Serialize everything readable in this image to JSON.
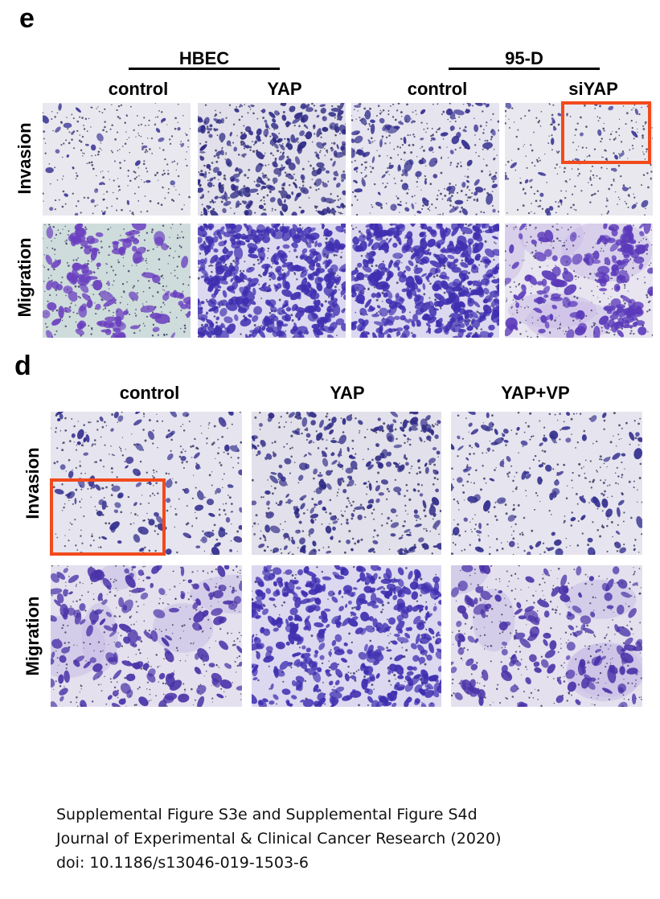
{
  "panel_e": {
    "letter": "e",
    "groups": [
      "HBEC",
      "95-D"
    ],
    "columns": [
      "control",
      "YAP",
      "control",
      "siYAP"
    ],
    "rows": [
      "Invasion",
      "Migration"
    ]
  },
  "panel_d": {
    "letter": "d",
    "columns": [
      "control",
      "YAP",
      "YAP+VP"
    ],
    "rows": [
      "Invasion",
      "Migration"
    ]
  },
  "colors": {
    "highlight": "#f24a1c",
    "stain": "#3b2e9a",
    "background_light": "#e8e6ee"
  },
  "caption": {
    "line1": "Supplemental Figure S3e and Supplemental Figure S4d",
    "line2": "Journal of Experimental & Clinical Cancer Research (2020)",
    "line3": "doi: 10.1186/s13046-019-1503-6"
  }
}
